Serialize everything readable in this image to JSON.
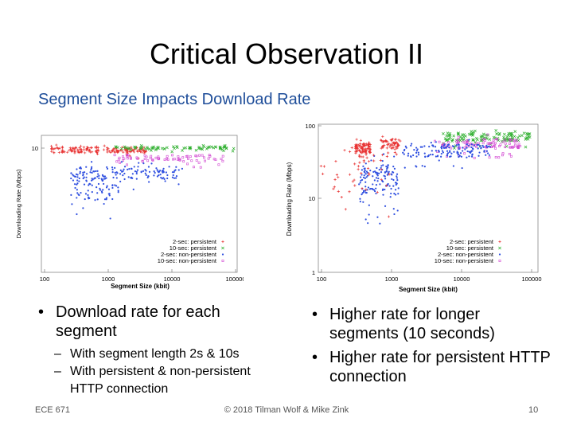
{
  "slide": {
    "title": "Critical Observation II",
    "subtitle": "Segment Size Impacts Download Rate",
    "left_bullets": [
      {
        "text": "Download rate for each segment"
      }
    ],
    "left_sub_bullets": [
      {
        "text": "With segment length 2s & 10s"
      },
      {
        "text": "With persistent & non-persistent HTTP connection"
      }
    ],
    "right_bullets": [
      {
        "text": "Higher rate for longer segments (10 seconds)"
      },
      {
        "text": "Higher rate for persistent HTTP connection"
      }
    ],
    "footer": {
      "course": "ECE 671",
      "copyright": "© 2018 Tilman Wolf & Mike Zink",
      "page": "10"
    }
  },
  "chart_data": [
    {
      "type": "scatter",
      "xlabel": "Segment Size (kbit)",
      "ylabel": "Downloading Rate (Mbps)",
      "x_scale": "log",
      "xticks": [
        "100",
        "1000",
        "10000",
        "100000"
      ],
      "yticks": [
        "10"
      ],
      "legend_position": "bottom-right",
      "series": [
        {
          "name": "2-sec: persistent",
          "color": "#e83030",
          "marker": "+"
        },
        {
          "name": "10-sec: persistent",
          "color": "#30b030",
          "marker": "x"
        },
        {
          "name": "2-sec: non-persistent",
          "color": "#3050e0",
          "marker": "*"
        },
        {
          "name": "10-sec: non-persistent",
          "color": "#d040d0",
          "marker": "square"
        }
      ]
    },
    {
      "type": "scatter",
      "xlabel": "Segment Size (kbit)",
      "ylabel": "Downloading Rate (Mbps)",
      "x_scale": "log",
      "y_scale": "log",
      "xticks": [
        "100",
        "1000",
        "10000",
        "100000"
      ],
      "yticks": [
        "1",
        "10",
        "100"
      ],
      "legend_position": "bottom-right",
      "series": [
        {
          "name": "2-sec: persistent",
          "color": "#e83030",
          "marker": "+"
        },
        {
          "name": "10-sec: persistent",
          "color": "#30b030",
          "marker": "x"
        },
        {
          "name": "2-sec: non-persistent",
          "color": "#3050e0",
          "marker": "*"
        },
        {
          "name": "10-sec: non-persistent",
          "color": "#d040d0",
          "marker": "square"
        }
      ]
    }
  ]
}
